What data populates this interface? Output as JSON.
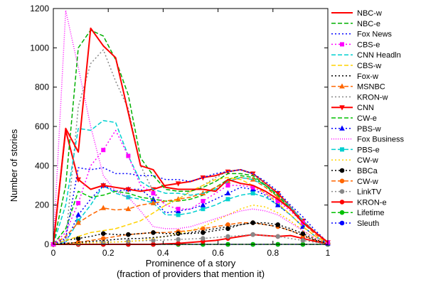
{
  "chart_data": {
    "type": "line",
    "title": "",
    "xlabel": "Prominence of a story",
    "xlabel_sub": "(fraction of providers that mention it)",
    "ylabel": "Number of stories",
    "xlim": [
      0,
      1
    ],
    "ylim": [
      0,
      1200
    ],
    "xticks": [
      0,
      0.2,
      0.4,
      0.6,
      0.8,
      1
    ],
    "xtick_labels": [
      "0",
      "0.2",
      "0.4",
      "0.6",
      "0.8",
      "1"
    ],
    "yticks": [
      0,
      200,
      400,
      600,
      800,
      1000,
      1200
    ],
    "ytick_labels": [
      "0",
      "200",
      "400",
      "600",
      "800",
      "1000",
      "1200"
    ],
    "grid": false,
    "legend_position": "right, outside plot",
    "x": [
      0,
      0.045,
      0.091,
      0.136,
      0.182,
      0.227,
      0.273,
      0.318,
      0.364,
      0.409,
      0.455,
      0.5,
      0.545,
      0.591,
      0.636,
      0.682,
      0.727,
      0.773,
      0.818,
      0.864,
      0.909,
      0.955,
      1.0
    ],
    "series": [
      {
        "name": "NBC-w",
        "color": "#ff0000",
        "dash": "",
        "marker": "none",
        "values": [
          0,
          590,
          470,
          1100,
          1010,
          950,
          670,
          400,
          380,
          290,
          280,
          280,
          280,
          270,
          330,
          310,
          300,
          270,
          230,
          180,
          110,
          60,
          10
        ]
      },
      {
        "name": "NBC-e",
        "color": "#00b000",
        "dash": "6,3",
        "marker": "none",
        "values": [
          0,
          300,
          1000,
          1090,
          1060,
          940,
          760,
          440,
          350,
          280,
          270,
          270,
          290,
          320,
          360,
          360,
          350,
          300,
          250,
          180,
          110,
          60,
          10
        ]
      },
      {
        "name": "Fox News",
        "color": "#0000ff",
        "dash": "2,3",
        "marker": "none",
        "values": [
          0,
          30,
          390,
          380,
          390,
          360,
          360,
          350,
          350,
          330,
          330,
          320,
          340,
          360,
          370,
          380,
          360,
          320,
          270,
          200,
          140,
          70,
          10
        ]
      },
      {
        "name": "CBS-e",
        "color": "#ff00ff",
        "dash": "2,3",
        "marker": "square",
        "values": [
          0,
          60,
          210,
          400,
          480,
          580,
          450,
          300,
          260,
          200,
          180,
          180,
          220,
          260,
          300,
          300,
          290,
          260,
          220,
          170,
          110,
          60,
          10
        ]
      },
      {
        "name": "CNN Headln",
        "color": "#00d0d0",
        "dash": "6,3",
        "marker": "none",
        "values": [
          0,
          200,
          590,
          580,
          630,
          620,
          450,
          320,
          280,
          260,
          260,
          250,
          260,
          280,
          320,
          340,
          330,
          300,
          250,
          190,
          120,
          60,
          10
        ]
      },
      {
        "name": "CBS-w",
        "color": "#ffd200",
        "dash": "6,3",
        "marker": "none",
        "values": [
          0,
          20,
          40,
          60,
          70,
          80,
          100,
          120,
          160,
          200,
          230,
          270,
          300,
          330,
          340,
          330,
          300,
          260,
          210,
          150,
          90,
          40,
          5
        ]
      },
      {
        "name": "Fox-w",
        "color": "#000000",
        "dash": "2,3",
        "marker": "none",
        "values": [
          0,
          5,
          10,
          15,
          20,
          25,
          30,
          30,
          35,
          40,
          50,
          60,
          70,
          80,
          90,
          100,
          110,
          100,
          90,
          70,
          45,
          20,
          5
        ]
      },
      {
        "name": "MSNBC",
        "color": "#ff6600",
        "dash": "6,3",
        "marker": "triangle",
        "values": [
          0,
          40,
          110,
          150,
          185,
          175,
          180,
          200,
          210,
          220,
          230,
          240,
          260,
          290,
          320,
          340,
          330,
          290,
          240,
          180,
          110,
          50,
          10
        ]
      },
      {
        "name": "KRON-w",
        "color": "#888888",
        "dash": "2,3",
        "marker": "none",
        "values": [
          0,
          20,
          700,
          920,
          990,
          830,
          690,
          400,
          270,
          200,
          230,
          270,
          300,
          340,
          370,
          380,
          360,
          310,
          250,
          190,
          120,
          60,
          10
        ]
      },
      {
        "name": "CNN",
        "color": "#ff0000",
        "dash": "",
        "marker": "triangle-down",
        "values": [
          0,
          580,
          330,
          280,
          300,
          290,
          280,
          270,
          280,
          300,
          310,
          320,
          340,
          350,
          370,
          380,
          360,
          310,
          260,
          190,
          120,
          60,
          10
        ]
      },
      {
        "name": "CW-e",
        "color": "#00c000",
        "dash": "6,3",
        "marker": "none",
        "values": [
          0,
          80,
          270,
          240,
          250,
          270,
          260,
          240,
          230,
          220,
          220,
          230,
          250,
          290,
          330,
          350,
          340,
          300,
          240,
          180,
          110,
          60,
          10
        ]
      },
      {
        "name": "PBS-w",
        "color": "#0000ff",
        "dash": "2,3",
        "marker": "triangle",
        "values": [
          0,
          10,
          150,
          230,
          300,
          270,
          280,
          280,
          230,
          160,
          170,
          180,
          200,
          230,
          260,
          290,
          280,
          250,
          200,
          150,
          90,
          40,
          5
        ]
      },
      {
        "name": "Fox Business",
        "color": "#ff00ff",
        "dash": "1,2",
        "marker": "none",
        "values": [
          0,
          1190,
          900,
          600,
          350,
          270,
          240,
          170,
          90,
          80,
          80,
          90,
          110,
          130,
          150,
          170,
          180,
          170,
          150,
          110,
          70,
          30,
          5
        ]
      },
      {
        "name": "PBS-e",
        "color": "#00d0d0",
        "dash": "6,3",
        "marker": "square",
        "values": [
          0,
          10,
          120,
          200,
          300,
          260,
          240,
          230,
          210,
          150,
          150,
          160,
          180,
          200,
          230,
          250,
          260,
          240,
          200,
          150,
          90,
          40,
          5
        ]
      },
      {
        "name": "CW-w",
        "color": "#ffd200",
        "dash": "2,3",
        "marker": "none",
        "values": [
          0,
          2,
          5,
          8,
          10,
          12,
          15,
          20,
          30,
          40,
          55,
          70,
          90,
          120,
          150,
          180,
          200,
          190,
          160,
          120,
          70,
          30,
          5
        ]
      },
      {
        "name": "BBCa",
        "color": "#000000",
        "dash": "2,3",
        "marker": "circle",
        "values": [
          0,
          20,
          30,
          40,
          55,
          50,
          50,
          55,
          60,
          55,
          55,
          55,
          60,
          70,
          80,
          100,
          110,
          110,
          100,
          80,
          55,
          25,
          5
        ]
      },
      {
        "name": "CW-w",
        "color": "#ff6600",
        "dash": "6,3",
        "marker": "circle",
        "values": [
          0,
          5,
          10,
          20,
          30,
          40,
          50,
          55,
          60,
          60,
          65,
          70,
          80,
          90,
          100,
          110,
          110,
          100,
          90,
          70,
          45,
          20,
          5
        ]
      },
      {
        "name": "LinkTV",
        "color": "#888888",
        "dash": "2,3",
        "marker": "circle",
        "values": [
          0,
          2,
          5,
          8,
          10,
          12,
          15,
          18,
          20,
          22,
          25,
          28,
          30,
          35,
          40,
          45,
          50,
          45,
          40,
          30,
          20,
          10,
          2
        ]
      },
      {
        "name": "KRON-e",
        "color": "#ff0000",
        "dash": "",
        "marker": "circle",
        "values": [
          0,
          0,
          0,
          0,
          0,
          0,
          0,
          0,
          0,
          2,
          5,
          10,
          15,
          20,
          30,
          40,
          50,
          45,
          40,
          45,
          30,
          15,
          2
        ]
      },
      {
        "name": "Lifetime",
        "color": "#00c000",
        "dash": "6,3",
        "marker": "circle",
        "values": [
          0,
          0,
          0,
          0,
          0,
          0,
          0,
          0,
          0,
          0,
          0,
          0,
          0,
          0,
          0,
          0,
          0,
          0,
          0,
          0,
          0,
          0,
          0
        ]
      },
      {
        "name": "Sleuth",
        "color": "#0000ff",
        "dash": "2,3",
        "marker": "circle",
        "values": [
          0,
          0,
          0,
          0,
          0,
          0,
          0,
          0,
          0,
          0,
          0,
          0,
          0,
          0,
          0,
          0,
          0,
          0,
          0,
          0,
          0,
          0,
          0
        ]
      }
    ]
  }
}
